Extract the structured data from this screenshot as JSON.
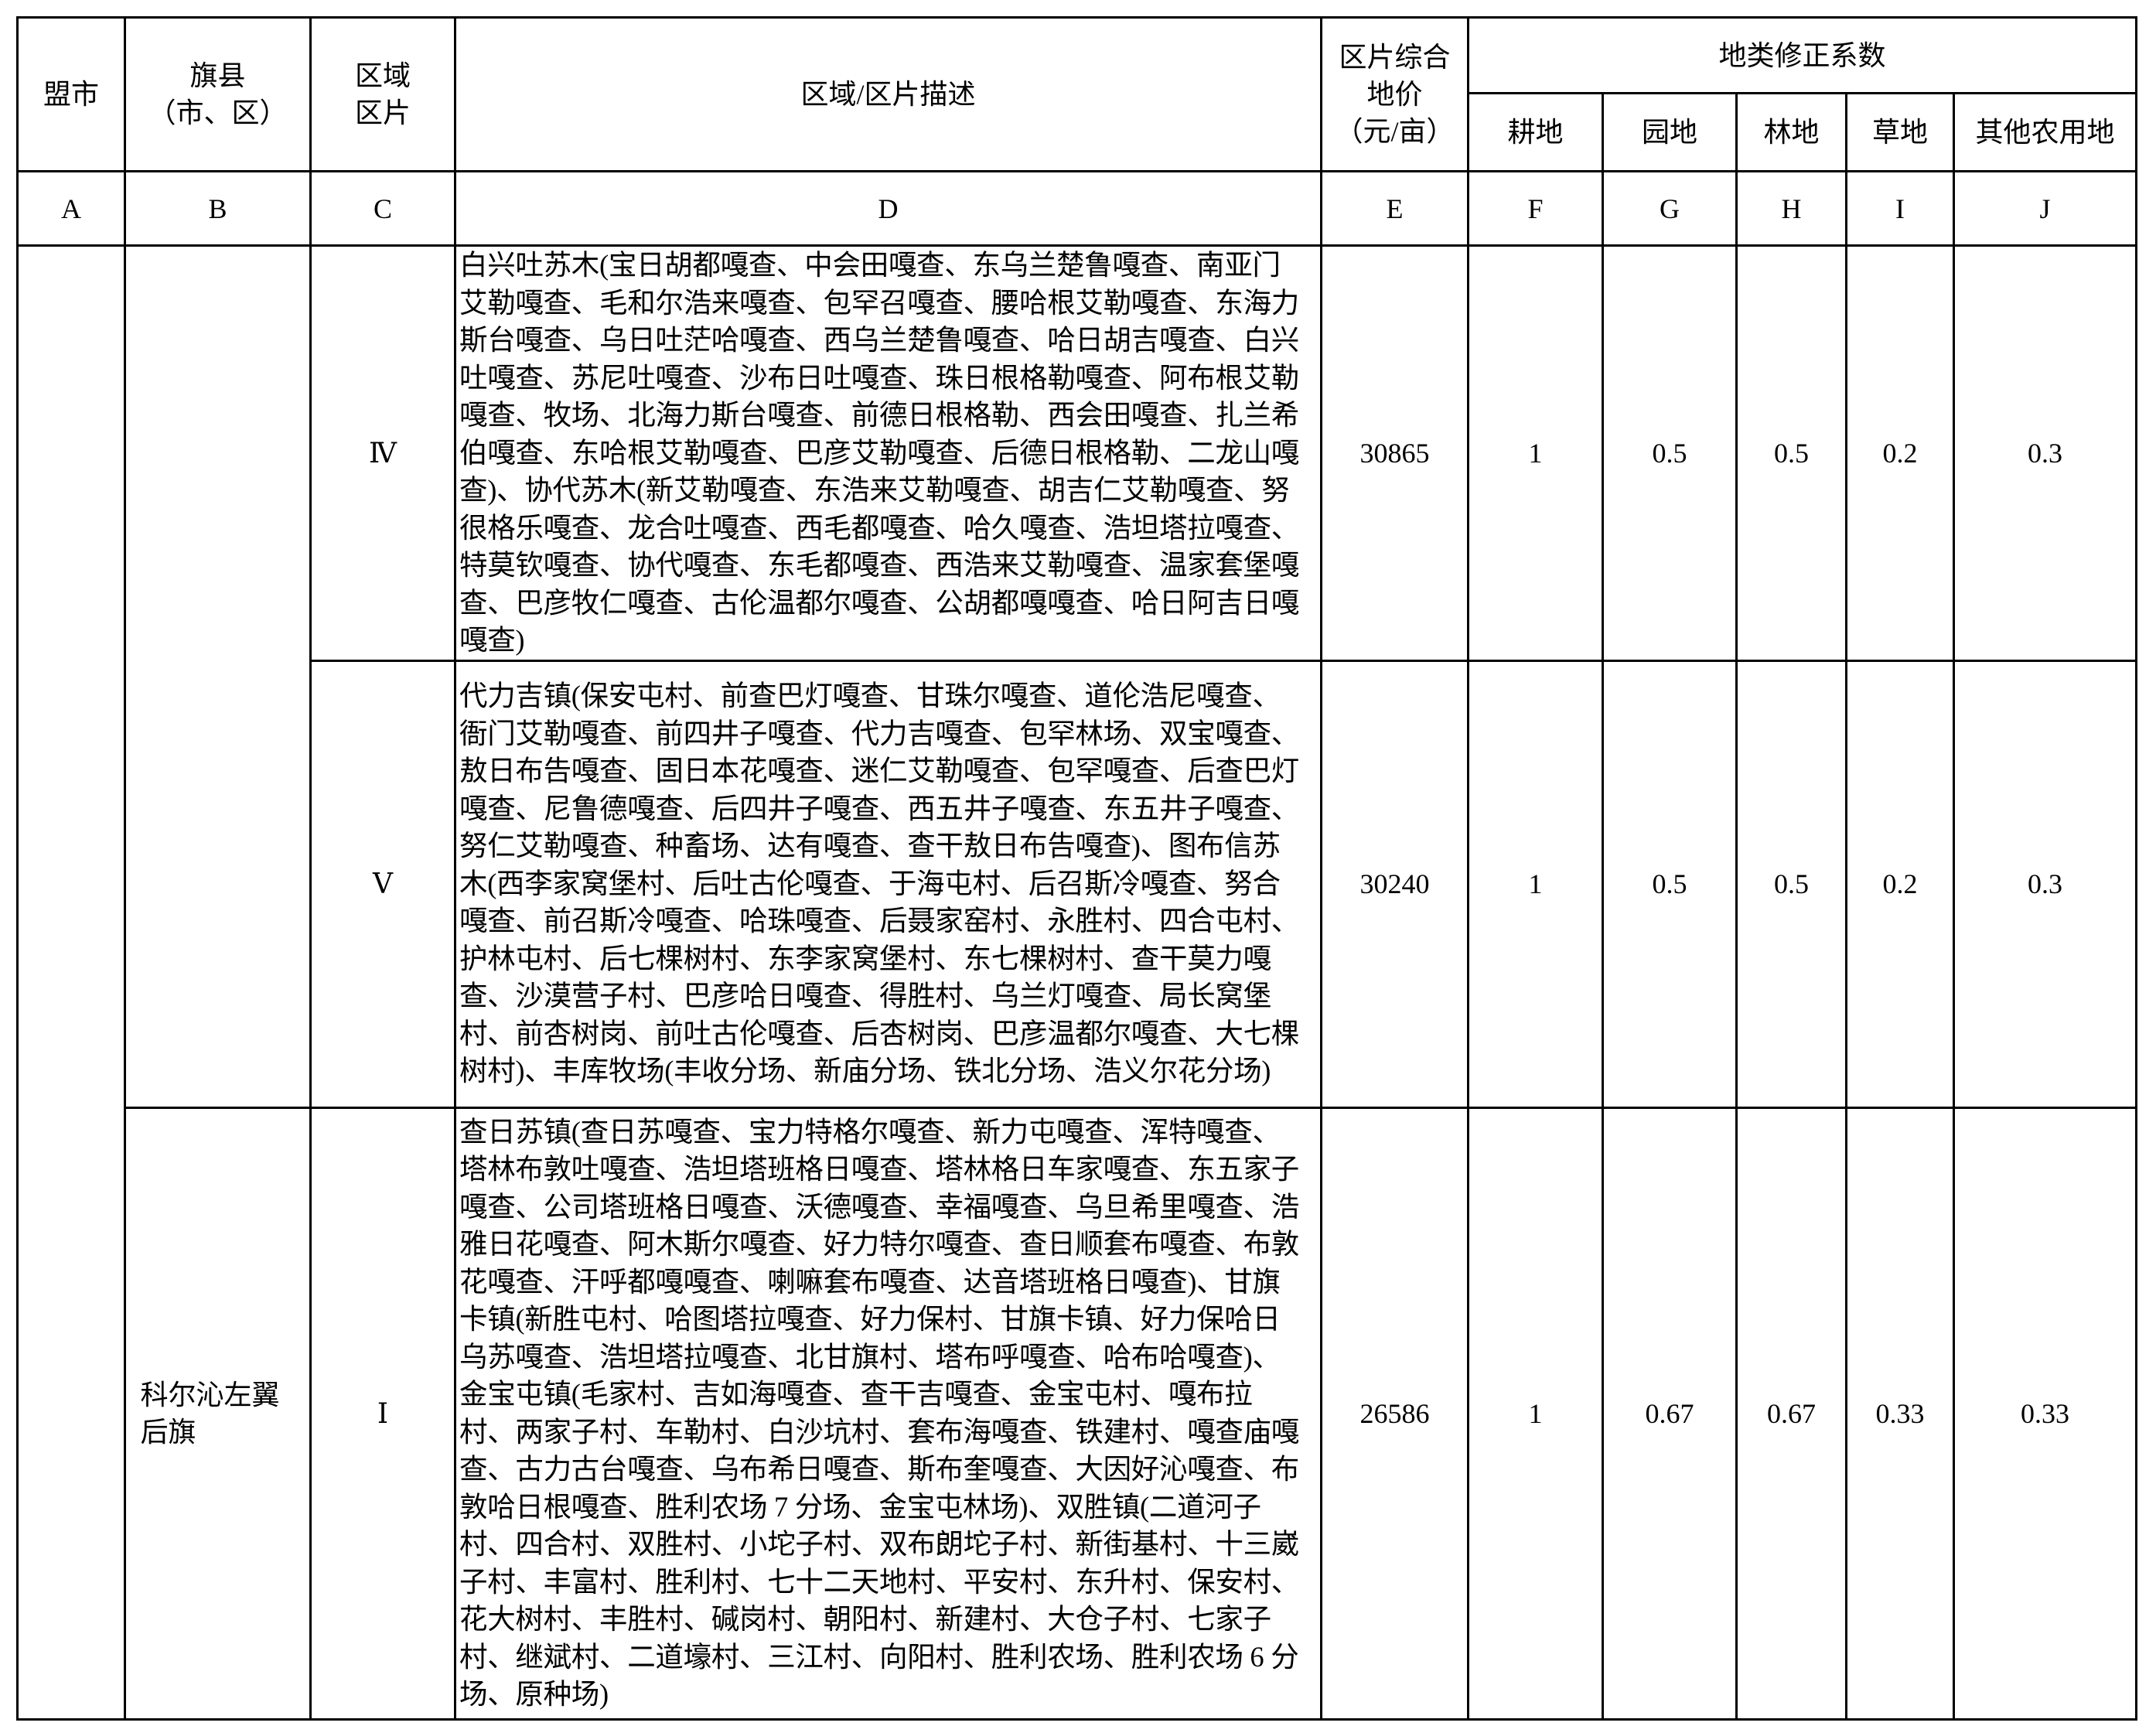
{
  "header": {
    "league": "盟市",
    "county": [
      "旗县",
      "（市、区）"
    ],
    "zone": [
      "区域",
      "区片"
    ],
    "description": "区域/区片描述",
    "price": [
      "区片综合",
      "地价",
      "（元/亩）"
    ],
    "coef_group": "地类修正系数",
    "coef_cols": [
      "耕地",
      "园地",
      "林地",
      "草地",
      "其他农用地"
    ]
  },
  "letters": [
    "A",
    "B",
    "C",
    "D",
    "E",
    "F",
    "G",
    "H",
    "I",
    "J"
  ],
  "rows": [
    {
      "league": "",
      "county": "",
      "zone": "Ⅳ",
      "lines": [
        "白兴吐苏木(宝日胡都嘎查、中会田嘎查、东乌兰楚鲁嘎查、南亚门",
        "艾勒嘎查、毛和尔浩来嘎查、包罕召嘎查、腰哈根艾勒嘎查、东海力",
        "斯台嘎查、乌日吐茫哈嘎查、西乌兰楚鲁嘎查、哈日胡吉嘎查、白兴",
        "吐嘎查、苏尼吐嘎查、沙布日吐嘎查、珠日根格勒嘎查、阿布根艾勒",
        "嘎查、牧场、北海力斯台嘎查、前德日根格勒、西会田嘎查、扎兰希",
        "伯嘎查、东哈根艾勒嘎查、巴彦艾勒嘎查、后德日根格勒、二龙山嘎",
        "查)、协代苏木(新艾勒嘎查、东浩来艾勒嘎查、胡吉仁艾勒嘎查、努",
        "很格乐嘎查、龙合吐嘎查、西毛都嘎查、哈久嘎查、浩坦塔拉嘎查、",
        "特莫钦嘎查、协代嘎查、东毛都嘎查、西浩来艾勒嘎查、温家套堡嘎",
        "查、巴彦牧仁嘎查、古伦温都尔嘎查、公胡都嘎嘎查、哈日阿吉日嘎",
        "嘎查)"
      ],
      "price": "30865",
      "coefs": [
        "1",
        "0.5",
        "0.5",
        "0.2",
        "0.3"
      ]
    },
    {
      "zone": "Ⅴ",
      "lines": [
        "代力吉镇(保安屯村、前查巴灯嘎查、甘珠尔嘎查、道伦浩尼嘎查、",
        "衙门艾勒嘎查、前四井子嘎查、代力吉嘎查、包罕林场、双宝嘎查、",
        "敖日布告嘎查、固日本花嘎查、迷仁艾勒嘎查、包罕嘎查、后查巴灯",
        "嘎查、尼鲁德嘎查、后四井子嘎查、西五井子嘎查、东五井子嘎查、",
        "努仁艾勒嘎查、种畜场、达有嘎查、查干敖日布告嘎查)、图布信苏",
        "木(西李家窝堡村、后吐古伦嘎查、于海屯村、后召斯冷嘎查、努合",
        "嘎查、前召斯冷嘎查、哈珠嘎查、后聂家窑村、永胜村、四合屯村、",
        "护林屯村、后七棵树村、东李家窝堡村、东七棵树村、查干莫力嘎",
        "查、沙漠营子村、巴彦哈日嘎查、得胜村、乌兰灯嘎查、局长窝堡",
        "村、前杏树岗、前吐古伦嘎查、后杏树岗、巴彦温都尔嘎查、大七棵",
        "树村)、丰库牧场(丰收分场、新庙分场、铁北分场、浩义尔花分场)"
      ],
      "price": "30240",
      "coefs": [
        "1",
        "0.5",
        "0.5",
        "0.2",
        "0.3"
      ]
    },
    {
      "county": "科尔沁左翼后旗",
      "zone": "Ⅰ",
      "lines": [
        "查日苏镇(查日苏嘎查、宝力特格尔嘎查、新力屯嘎查、浑特嘎查、",
        "塔林布敦吐嘎查、浩坦塔班格日嘎查、塔林格日车家嘎查、东五家子",
        "嘎查、公司塔班格日嘎查、沃德嘎查、幸福嘎查、乌旦希里嘎查、浩",
        "雅日花嘎查、阿木斯尔嘎查、好力特尔嘎查、查日顺套布嘎查、布敦",
        "花嘎查、汗呼都嘎嘎查、喇嘛套布嘎查、达音塔班格日嘎查)、甘旗",
        "卡镇(新胜屯村、哈图塔拉嘎查、好力保村、甘旗卡镇、好力保哈日",
        "乌苏嘎查、浩坦塔拉嘎查、北甘旗村、塔布呼嘎查、哈布哈嘎查)、",
        "金宝屯镇(毛家村、吉如海嘎查、查干吉嘎查、金宝屯村、嘎布拉",
        "村、两家子村、车勒村、白沙坑村、套布海嘎查、铁建村、嘎查庙嘎",
        "查、古力古台嘎查、乌布希日嘎查、斯布奎嘎查、大因好沁嘎查、布",
        "敦哈日根嘎查、胜利农场 7 分场、金宝屯林场)、双胜镇(二道河子",
        "村、四合村、双胜村、小坨子村、双布朗坨子村、新街基村、十三崴",
        "子村、丰富村、胜利村、七十二天地村、平安村、东升村、保安村、",
        "花大树村、丰胜村、碱岗村、朝阳村、新建村、大仓子村、七家子",
        "村、继斌村、二道壕村、三江村、向阳村、胜利农场、胜利农场 6 分",
        "场、原种场)"
      ],
      "price": "26586",
      "coefs": [
        "1",
        "0.67",
        "0.67",
        "0.33",
        "0.33"
      ]
    }
  ]
}
